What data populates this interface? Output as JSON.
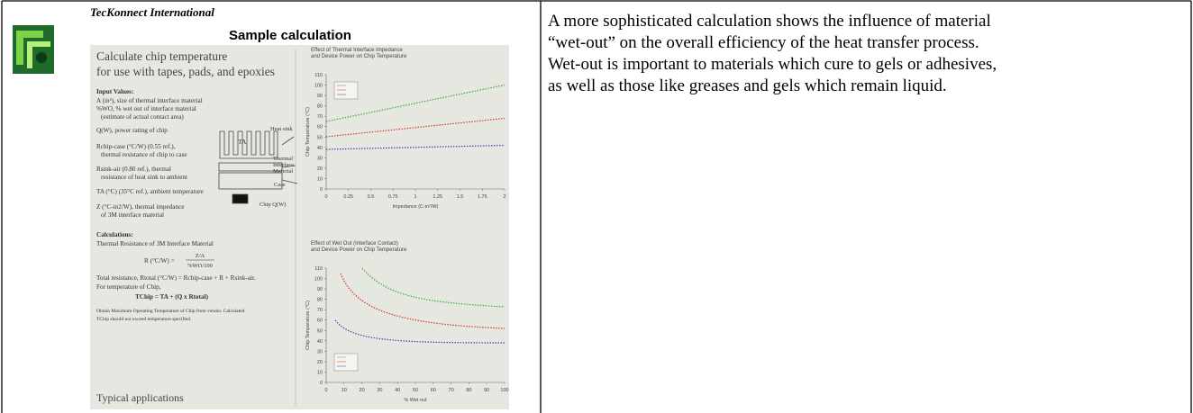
{
  "header": {
    "company": "TecKonnect International",
    "title": "Sample calculation"
  },
  "slide": {
    "heading": [
      "Calculate chip temperature",
      "for use with tapes, pads, and epoxies"
    ],
    "input_heading": "Input Values:",
    "inputs": [
      "A (in²), size of thermal interface material",
      "%WO, % wet out of interface material",
      "(estimate of actual contact area)",
      "Q(W), power rating of chip",
      "Rchip-case (°C/W) (0.55 ref.),",
      "thermal resistance of chip to case",
      "Rsink-air (0.80 ref.), thermal",
      "resistance of heat sink to ambient",
      "TA (°C) (35°C ref.), ambient temperature",
      "Z (°C-in2/W), thermal impedance",
      "of 3M interface material"
    ],
    "diagram_labels": {
      "ambient": "TA",
      "sink": "Heat sink",
      "interface": [
        "Thermal",
        "Interface",
        "Material"
      ],
      "case": "Case",
      "chip": "Chip Q(W)"
    },
    "calc_heading": "Calculations:",
    "calc_intro": "Thermal Resistance of 3M Interface Material",
    "formula": {
      "lhs": "R (°C/W) =",
      "num": "Z/A",
      "den": "%WO/100"
    },
    "calc_lines": [
      "Total resistance, Rtotal (°C/W) = Rchip-case + R + Rsink-air.",
      "For temperature of Chip,",
      "TChip = TA + (Q x Rtotal)"
    ],
    "note": [
      "Obtain Maximum Operating Temperature of Chip from vendor. Calculated",
      "TChip should not exceed temperature specified."
    ],
    "footer": "Typical applications",
    "charts": [
      {
        "title": [
          "Effect of Thermal Interface Impedance",
          "and Device Power on Chip Temperature"
        ],
        "y_label": "Chip Temperature (°C)",
        "x_label": "Impedance (C-in²/W)",
        "xlim": [
          0,
          2
        ],
        "xticks": [
          0,
          0.25,
          0.5,
          0.75,
          1,
          1.25,
          1.5,
          1.75,
          2
        ],
        "ylim": [
          0,
          110
        ],
        "yticks": [
          0,
          10,
          20,
          30,
          40,
          50,
          60,
          70,
          80,
          90,
          100,
          110
        ]
      },
      {
        "title": [
          "Effect of Wet Out (Interface Contact)",
          "and Device Power on Chip Temperature"
        ],
        "y_label": "Chip Temperature (°C)",
        "x_label": "% Wet out",
        "xlim": [
          0,
          100
        ],
        "xticks": [
          0,
          10,
          20,
          30,
          40,
          50,
          60,
          70,
          80,
          90,
          100
        ],
        "ylim": [
          0,
          110
        ],
        "yticks": [
          0,
          10,
          20,
          30,
          40,
          50,
          60,
          70,
          80,
          90,
          100,
          110
        ]
      }
    ]
  },
  "body": {
    "paragraph": [
      "A more sophisticated calculation shows the influence of material",
      "“wet-out” on the overall efficiency of the heat transfer process.",
      "Wet-out is important to materials which cure to gels or adhesives,",
      "as well as those like greases and gels which remain liquid."
    ]
  }
}
